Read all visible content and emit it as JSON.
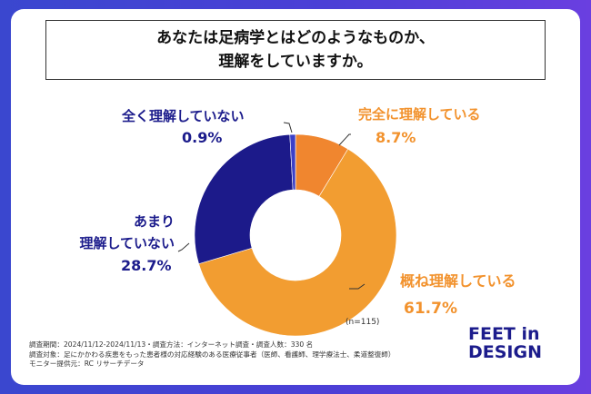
{
  "title_lines": [
    "あなたは足病学とはどのようなものか、",
    "理解をしていますか。"
  ],
  "chart_data": {
    "type": "pie",
    "variant": "donut",
    "categories": [
      "完全に理解している",
      "概ね理解している",
      "あまり理解していない",
      "全く理解していない"
    ],
    "values": [
      8.7,
      61.7,
      28.7,
      0.9
    ],
    "value_labels": [
      "8.7%",
      "61.7%",
      "28.7%",
      "0.9%"
    ],
    "colors": [
      "#f0862f",
      "#f29d31",
      "#1c1a8a",
      "#3b40c8"
    ],
    "label_lines": [
      [
        "完全に理解している"
      ],
      [
        "概ね理解している"
      ],
      [
        "あまり",
        "理解していない"
      ],
      [
        "全く理解していない"
      ]
    ],
    "sample_note": "(n=115)"
  },
  "footer_lines": [
    "調査期間：2024/11/12-2024/11/13・調査方法：インターネット調査・調査人数：330 名",
    "調査対象：足にかかわる疾患をもった患者様の対応経験のある医療従事者（医師、看護師、理学療法士、柔道整復師）",
    "モニター提供元：RC リサーチデータ"
  ],
  "logo_lines": [
    "FEET in",
    "DESIGN"
  ]
}
